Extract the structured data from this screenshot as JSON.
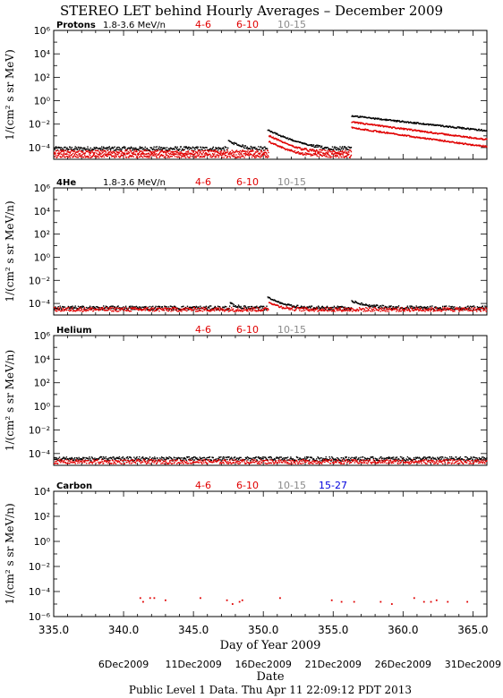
{
  "title": "STEREO LET behind Hourly Averages – December 2009",
  "x_axis": {
    "label": "Day of Year 2009",
    "range": [
      335.0,
      366.0
    ],
    "ticks": [
      "335.0",
      "340.0",
      "345.0",
      "350.0",
      "355.0",
      "360.0",
      "365.0"
    ],
    "date_axis_label": "Date",
    "date_ticks": [
      "6Dec2009",
      "11Dec2009",
      "16Dec2009",
      "21Dec2009",
      "26Dec2009",
      "31Dec2009"
    ]
  },
  "footer": "Public Level 1 Data. Thu Apr 11 22:09:12 PDT 2013",
  "colors": {
    "black": "#000000",
    "red": "#e00000",
    "gray": "#8a8a8a",
    "blue": "#0000dd"
  },
  "chart_data": [
    {
      "type": "scatter",
      "name": "Protons",
      "energy": "1.8-3.6 MeV/n",
      "legend": [
        "4-6",
        "6-10",
        "10-15"
      ],
      "ylabel": "1/(cm² s sr MeV)",
      "yscale": "log",
      "ylim": [
        1e-05,
        1000000.0
      ],
      "yticks": [
        1000000.0,
        10000.0,
        100.0,
        1.0,
        0.01,
        0.0001
      ],
      "series": [
        {
          "name": "1.8-3.6 MeV/n",
          "color": "#000000",
          "baseline": 8e-05,
          "events": [
            {
              "start": 347.5,
              "peak": 0.0003,
              "decay": 1.0
            },
            {
              "start": 350.3,
              "peak": 0.003,
              "decay": 1.5
            },
            {
              "start": 356.3,
              "peak": 0.05,
              "decay": 6.0
            }
          ]
        },
        {
          "name": "4-6",
          "color": "#e00000",
          "baseline": 4e-05,
          "events": [
            {
              "start": 350.4,
              "peak": 0.001,
              "decay": 1.3
            },
            {
              "start": 356.3,
              "peak": 0.015,
              "decay": 5.0
            }
          ]
        },
        {
          "name": "6-10",
          "color": "#e00000",
          "baseline": 2e-05,
          "events": [
            {
              "start": 350.4,
              "peak": 0.0003,
              "decay": 1.3
            },
            {
              "start": 356.3,
              "peak": 0.005,
              "decay": 4.5
            }
          ]
        }
      ]
    },
    {
      "type": "scatter",
      "name": "4He",
      "energy": "1.8-3.6 MeV/n",
      "legend": [
        "4-6",
        "6-10",
        "10-15"
      ],
      "ylabel": "1/(cm² s sr MeV/n)",
      "yscale": "log",
      "ylim": [
        1e-05,
        1000000.0
      ],
      "yticks": [
        1000000.0,
        10000.0,
        100.0,
        1.0,
        0.01,
        0.0001
      ],
      "series": [
        {
          "name": "1.8-3.6 MeV/n",
          "color": "#000000",
          "baseline": 4e-05,
          "events": [
            {
              "start": 350.3,
              "peak": 0.0003,
              "decay": 1.2
            },
            {
              "start": 356.3,
              "peak": 0.00012,
              "decay": 1.5
            },
            {
              "start": 347.6,
              "peak": 7e-05,
              "decay": 0.6
            }
          ]
        },
        {
          "name": "4-6",
          "color": "#e00000",
          "baseline": 3e-05,
          "events": [
            {
              "start": 350.4,
              "peak": 0.0001,
              "decay": 1.0
            }
          ]
        }
      ]
    },
    {
      "type": "scatter",
      "name": "Helium",
      "energy": "",
      "legend": [
        "4-6",
        "6-10",
        "10-15"
      ],
      "ylabel": "1/(cm² s sr MeV/n)",
      "yscale": "log",
      "ylim": [
        1e-05,
        1000000.0
      ],
      "yticks": [
        1000000.0,
        10000.0,
        100.0,
        1.0,
        0.01,
        0.0001
      ],
      "series": [
        {
          "name": "4-6",
          "color": "#000000",
          "baseline": 3.5e-05,
          "events": []
        },
        {
          "name": "6-10",
          "color": "#e00000",
          "baseline": 2e-05,
          "events": []
        }
      ]
    },
    {
      "type": "scatter",
      "name": "Carbon",
      "energy": "",
      "legend": [
        "4-6",
        "6-10",
        "10-15",
        "15-27"
      ],
      "ylabel": "1/(cm² s sr MeV/n)",
      "yscale": "log",
      "ylim": [
        1e-06,
        10000.0
      ],
      "yticks": [
        10000.0,
        100.0,
        1.0,
        0.01,
        0.0001,
        1e-06
      ],
      "sparse_points": [
        [
          341.2,
          3e-05
        ],
        [
          341.4,
          1.5e-05
        ],
        [
          341.9,
          3e-05
        ],
        [
          342.2,
          3e-05
        ],
        [
          343.0,
          2e-05
        ],
        [
          345.5,
          3e-05
        ],
        [
          347.4,
          2e-05
        ],
        [
          347.8,
          1e-05
        ],
        [
          348.3,
          1.5e-05
        ],
        [
          348.5,
          2e-05
        ],
        [
          351.2,
          3e-05
        ],
        [
          354.9,
          2e-05
        ],
        [
          355.6,
          1.5e-05
        ],
        [
          356.5,
          1.5e-05
        ],
        [
          358.4,
          1.5e-05
        ],
        [
          359.2,
          1e-05
        ],
        [
          360.8,
          3e-05
        ],
        [
          361.5,
          1.5e-05
        ],
        [
          362.0,
          1.5e-05
        ],
        [
          362.4,
          2e-05
        ],
        [
          363.2,
          1.5e-05
        ],
        [
          364.6,
          1.5e-05
        ]
      ]
    }
  ]
}
